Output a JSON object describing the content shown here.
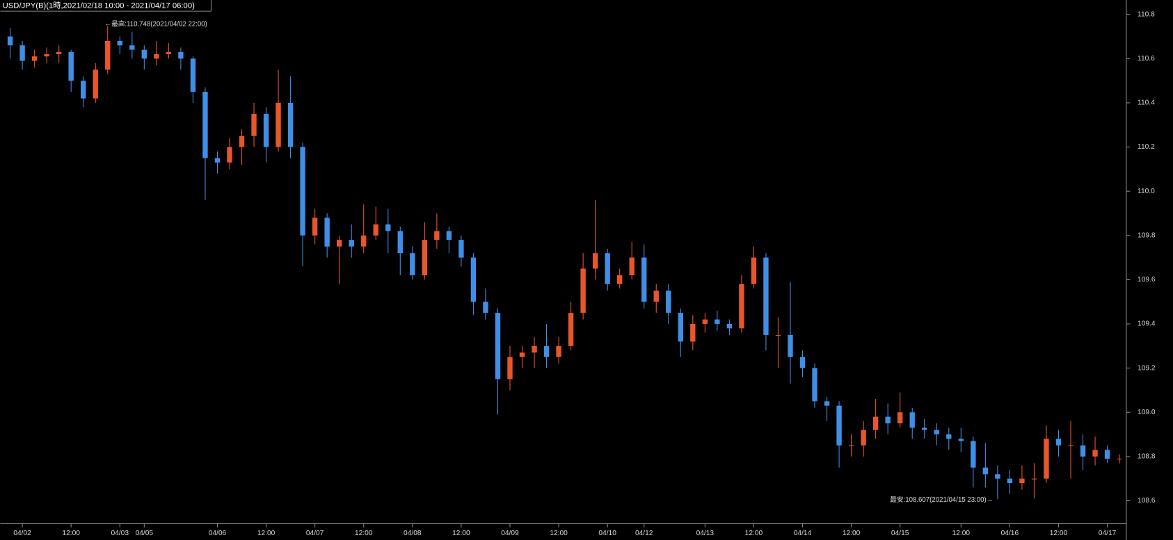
{
  "chart_data": {
    "type": "candlestick",
    "title": "USD/JPY(B)(1時,2021/02/18 10:00 - 2021/04/17 06:00)",
    "annotations": [
      "←最高:110.748(2021/04/02 22:00)",
      "最安:108.607(2021/04/15 23:00)→"
    ],
    "up_color": "#e8562a",
    "down_color": "#3f8fe6",
    "ylim": [
      108.5,
      110.855
    ],
    "yticks": [
      108.6,
      108.8,
      {
        "value": 109.0,
        "label": "109.0"
      },
      109.2,
      109.4,
      109.6,
      109.8,
      {
        "value": 110.0,
        "label": "110.0"
      },
      110.2,
      110.4,
      110.6,
      110.8
    ],
    "categories": [
      null,
      "04/02",
      null,
      null,
      null,
      "12:00",
      null,
      null,
      null,
      "04/03",
      null,
      "04/05",
      null,
      null,
      null,
      null,
      null,
      "04/06",
      null,
      null,
      null,
      "12:00",
      null,
      null,
      null,
      "04/07",
      null,
      null,
      null,
      "12:00",
      null,
      null,
      null,
      "04/08",
      null,
      null,
      null,
      "12:00",
      null,
      null,
      null,
      "04/09",
      null,
      null,
      null,
      "12:00",
      null,
      null,
      null,
      "04/10",
      null,
      null,
      "04/12",
      null,
      null,
      null,
      null,
      "04/13",
      null,
      null,
      null,
      "12:00",
      null,
      null,
      null,
      "04/14",
      null,
      null,
      null,
      "12:00",
      null,
      null,
      null,
      "04/15",
      null,
      null,
      null,
      null,
      "12:00",
      null,
      null,
      null,
      "04/16",
      null,
      null,
      null,
      "12:00",
      null,
      null,
      null,
      "04/17",
      null
    ],
    "ohlc": [
      [
        110.7,
        110.74,
        110.6,
        110.66
      ],
      [
        110.66,
        110.68,
        110.55,
        110.59
      ],
      [
        110.59,
        110.64,
        110.56,
        110.61
      ],
      [
        110.61,
        110.65,
        110.58,
        110.62
      ],
      [
        110.62,
        110.66,
        110.58,
        110.63
      ],
      [
        110.63,
        110.64,
        110.45,
        110.5
      ],
      [
        110.5,
        110.52,
        110.38,
        110.42
      ],
      [
        110.42,
        110.58,
        110.4,
        110.55
      ],
      [
        110.55,
        110.748,
        110.53,
        110.68
      ],
      [
        110.68,
        110.7,
        110.62,
        110.66
      ],
      [
        110.66,
        110.72,
        110.6,
        110.64
      ],
      [
        110.64,
        110.66,
        110.55,
        110.6
      ],
      [
        110.6,
        110.68,
        110.57,
        110.62
      ],
      [
        110.62,
        110.67,
        110.6,
        110.63
      ],
      [
        110.63,
        110.65,
        110.55,
        110.6
      ],
      [
        110.6,
        110.61,
        110.4,
        110.45
      ],
      [
        110.45,
        110.47,
        109.96,
        110.15
      ],
      [
        110.15,
        110.18,
        110.08,
        110.13
      ],
      [
        110.13,
        110.24,
        110.1,
        110.2
      ],
      [
        110.2,
        110.28,
        110.12,
        110.25
      ],
      [
        110.25,
        110.4,
        110.2,
        110.35
      ],
      [
        110.35,
        110.38,
        110.13,
        110.2
      ],
      [
        110.2,
        110.55,
        110.18,
        110.4
      ],
      [
        110.4,
        110.52,
        110.15,
        110.2
      ],
      [
        110.2,
        110.22,
        109.66,
        109.8
      ],
      [
        109.8,
        109.92,
        109.76,
        109.88
      ],
      [
        109.88,
        109.9,
        109.7,
        109.75
      ],
      [
        109.75,
        109.8,
        109.58,
        109.78
      ],
      [
        109.78,
        109.85,
        109.7,
        109.75
      ],
      [
        109.75,
        109.94,
        109.72,
        109.8
      ],
      [
        109.8,
        109.93,
        109.78,
        109.85
      ],
      [
        109.85,
        109.92,
        109.72,
        109.82
      ],
      [
        109.82,
        109.84,
        109.62,
        109.72
      ],
      [
        109.72,
        109.75,
        109.6,
        109.62
      ],
      [
        109.62,
        109.86,
        109.6,
        109.78
      ],
      [
        109.78,
        109.9,
        109.74,
        109.82
      ],
      [
        109.82,
        109.84,
        109.72,
        109.78
      ],
      [
        109.78,
        109.8,
        109.66,
        109.7
      ],
      [
        109.7,
        109.72,
        109.44,
        109.5
      ],
      [
        109.5,
        109.56,
        109.42,
        109.45
      ],
      [
        109.45,
        109.47,
        108.99,
        109.15
      ],
      [
        109.15,
        109.3,
        109.1,
        109.25
      ],
      [
        109.25,
        109.3,
        109.2,
        109.27
      ],
      [
        109.27,
        109.34,
        109.2,
        109.3
      ],
      [
        109.3,
        109.4,
        109.2,
        109.25
      ],
      [
        109.25,
        109.34,
        109.22,
        109.3
      ],
      [
        109.3,
        109.5,
        109.28,
        109.45
      ],
      [
        109.45,
        109.72,
        109.42,
        109.65
      ],
      [
        109.65,
        109.96,
        109.6,
        109.72
      ],
      [
        109.72,
        109.74,
        109.55,
        109.58
      ],
      [
        109.58,
        109.65,
        109.56,
        109.62
      ],
      [
        109.62,
        109.77,
        109.6,
        109.7
      ],
      [
        109.7,
        109.76,
        109.47,
        109.5
      ],
      [
        109.5,
        109.58,
        109.45,
        109.55
      ],
      [
        109.55,
        109.58,
        109.4,
        109.45
      ],
      [
        109.45,
        109.47,
        109.25,
        109.32
      ],
      [
        109.32,
        109.44,
        109.28,
        109.4
      ],
      [
        109.4,
        109.45,
        109.36,
        109.42
      ],
      [
        109.42,
        109.46,
        109.37,
        109.4
      ],
      [
        109.4,
        109.42,
        109.35,
        109.38
      ],
      [
        109.38,
        109.62,
        109.36,
        109.58
      ],
      [
        109.58,
        109.75,
        109.56,
        109.7
      ],
      [
        109.7,
        109.72,
        109.28,
        109.35
      ],
      [
        109.35,
        109.43,
        109.2,
        109.35
      ],
      [
        109.35,
        109.59,
        109.13,
        109.25
      ],
      [
        109.25,
        109.28,
        109.16,
        109.2
      ],
      [
        109.2,
        109.22,
        109.02,
        109.05
      ],
      [
        109.05,
        109.07,
        108.96,
        109.03
      ],
      [
        109.03,
        109.05,
        108.75,
        108.85
      ],
      [
        108.85,
        108.9,
        108.8,
        108.85
      ],
      [
        108.85,
        108.96,
        108.8,
        108.92
      ],
      [
        108.92,
        109.06,
        108.88,
        108.98
      ],
      [
        108.98,
        109.04,
        108.9,
        108.95
      ],
      [
        108.95,
        109.09,
        108.93,
        109.0
      ],
      [
        109.0,
        109.02,
        108.88,
        108.93
      ],
      [
        108.93,
        108.97,
        108.88,
        108.92
      ],
      [
        108.92,
        108.95,
        108.85,
        108.9
      ],
      [
        108.9,
        108.93,
        108.83,
        108.88
      ],
      [
        108.88,
        108.93,
        108.82,
        108.87
      ],
      [
        108.87,
        108.89,
        108.66,
        108.75
      ],
      [
        108.75,
        108.86,
        108.66,
        108.72
      ],
      [
        108.72,
        108.76,
        108.607,
        108.7
      ],
      [
        108.7,
        108.74,
        108.63,
        108.68
      ],
      [
        108.68,
        108.76,
        108.65,
        108.7
      ],
      [
        108.7,
        108.77,
        108.61,
        108.7
      ],
      [
        108.7,
        108.94,
        108.68,
        108.88
      ],
      [
        108.88,
        108.92,
        108.8,
        108.85
      ],
      [
        108.85,
        108.96,
        108.7,
        108.85
      ],
      [
        108.85,
        108.9,
        108.74,
        108.8
      ],
      [
        108.8,
        108.89,
        108.76,
        108.83
      ],
      [
        108.83,
        108.85,
        108.77,
        108.79
      ],
      [
        108.79,
        108.81,
        108.77,
        108.79
      ]
    ]
  }
}
